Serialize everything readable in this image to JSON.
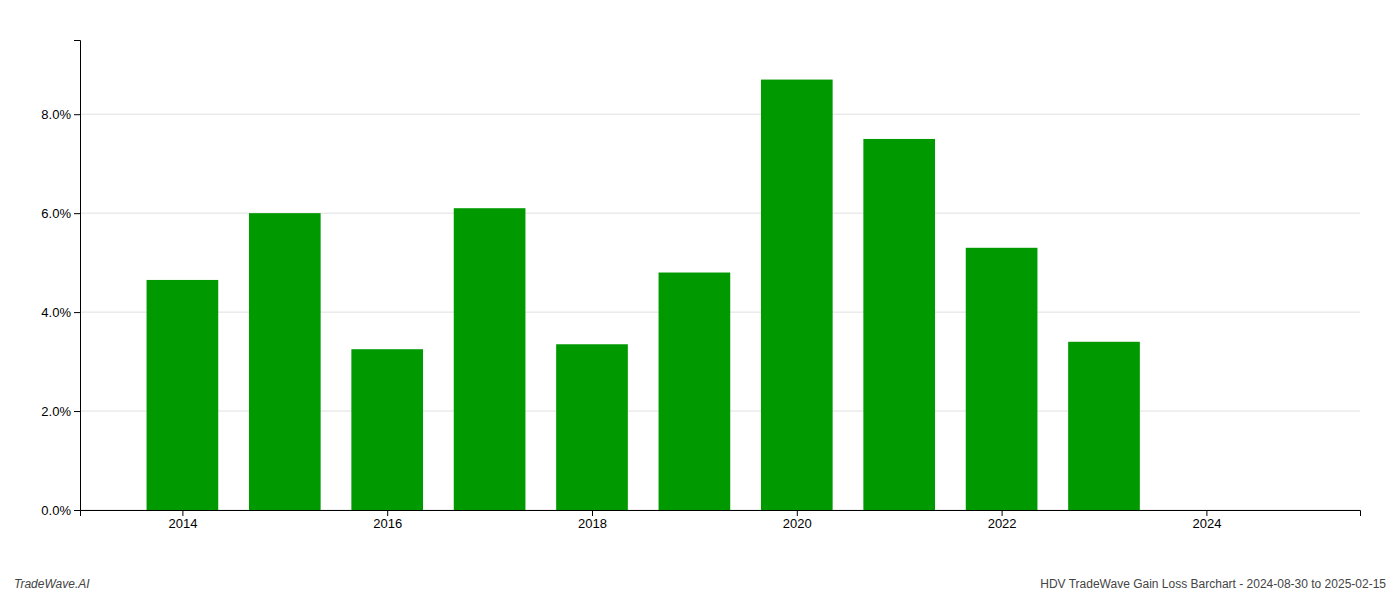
{
  "chart_data": {
    "type": "bar",
    "x": [
      2014,
      2015,
      2016,
      2017,
      2018,
      2019,
      2020,
      2021,
      2022,
      2023
    ],
    "values": [
      0.0465,
      0.06,
      0.0325,
      0.061,
      0.0335,
      0.048,
      0.087,
      0.075,
      0.053,
      0.034
    ],
    "color": "#009900",
    "xlim": [
      2013.0,
      2025.5
    ],
    "xticks": [
      2014,
      2016,
      2018,
      2020,
      2022,
      2024
    ],
    "ylim": [
      0,
      0.095
    ],
    "yticks": [
      {
        "value": 0.0,
        "label": "0.0%"
      },
      {
        "value": 0.02,
        "label": "2.0%"
      },
      {
        "value": 0.04,
        "label": "4.0%"
      },
      {
        "value": 0.06,
        "label": "6.0%"
      },
      {
        "value": 0.08,
        "label": "8.0%"
      }
    ],
    "grid": true,
    "annotations": [
      "TradeWave.AI",
      "HDV TradeWave Gain Loss Barchart - 2024-08-30 to 2025-02-15"
    ]
  }
}
